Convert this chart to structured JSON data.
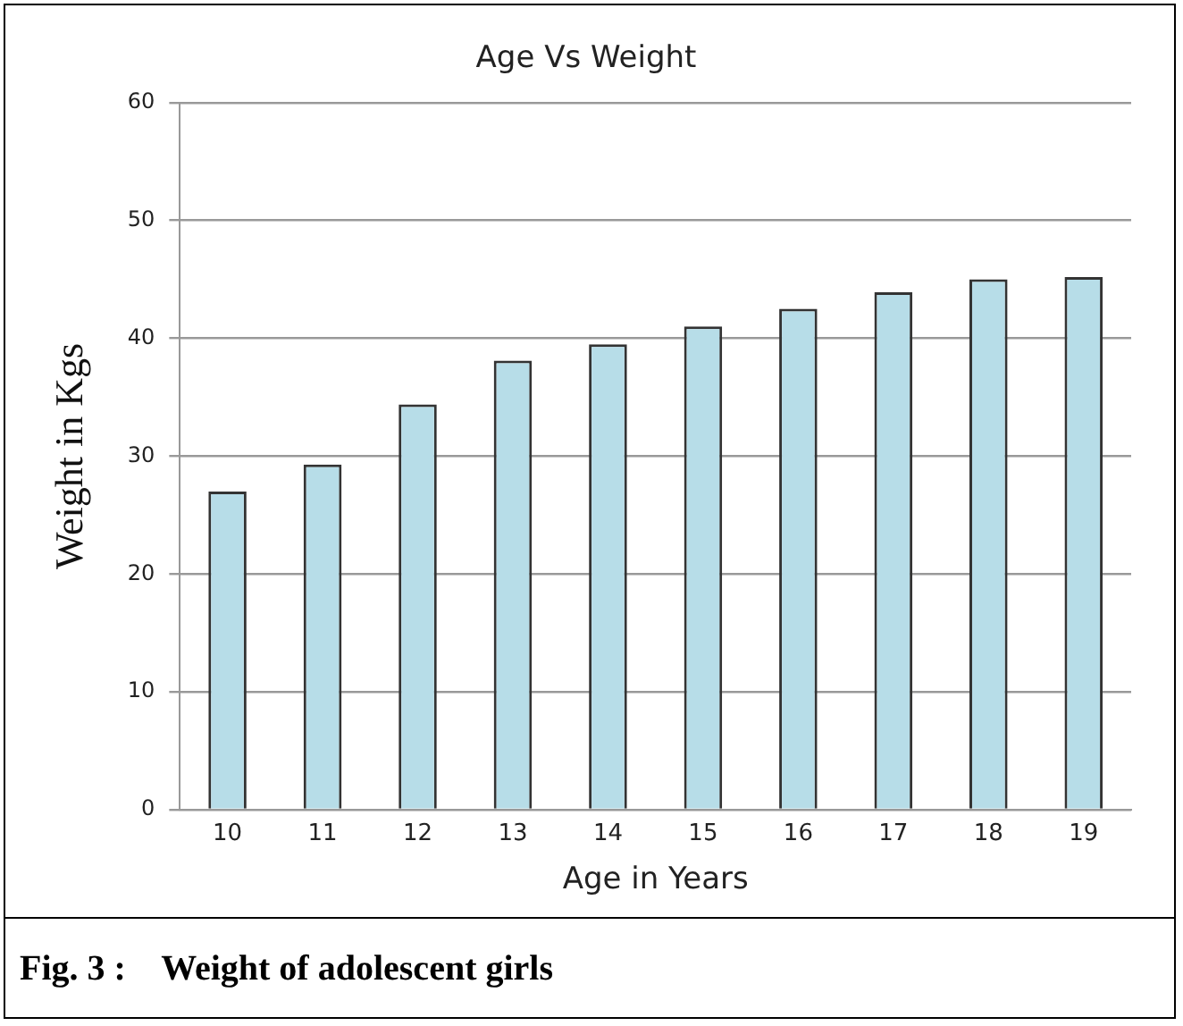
{
  "chart_data": {
    "type": "bar",
    "title": "Age Vs Weight",
    "xlabel": "Age in Years",
    "ylabel": "Weight in Kgs",
    "categories": [
      "10",
      "11",
      "12",
      "13",
      "14",
      "15",
      "16",
      "17",
      "18",
      "19"
    ],
    "values": [
      27.0,
      29.3,
      34.4,
      38.1,
      39.5,
      41.0,
      42.5,
      43.9,
      45.0,
      45.2
    ],
    "color": "#b7dde8",
    "ylim": [
      0,
      60
    ],
    "yticks": [
      0,
      10,
      20,
      30,
      40,
      50,
      60
    ],
    "grid": "y",
    "annotations": [
      "Fig. 3 :    Weight of adolescent girls"
    ]
  }
}
